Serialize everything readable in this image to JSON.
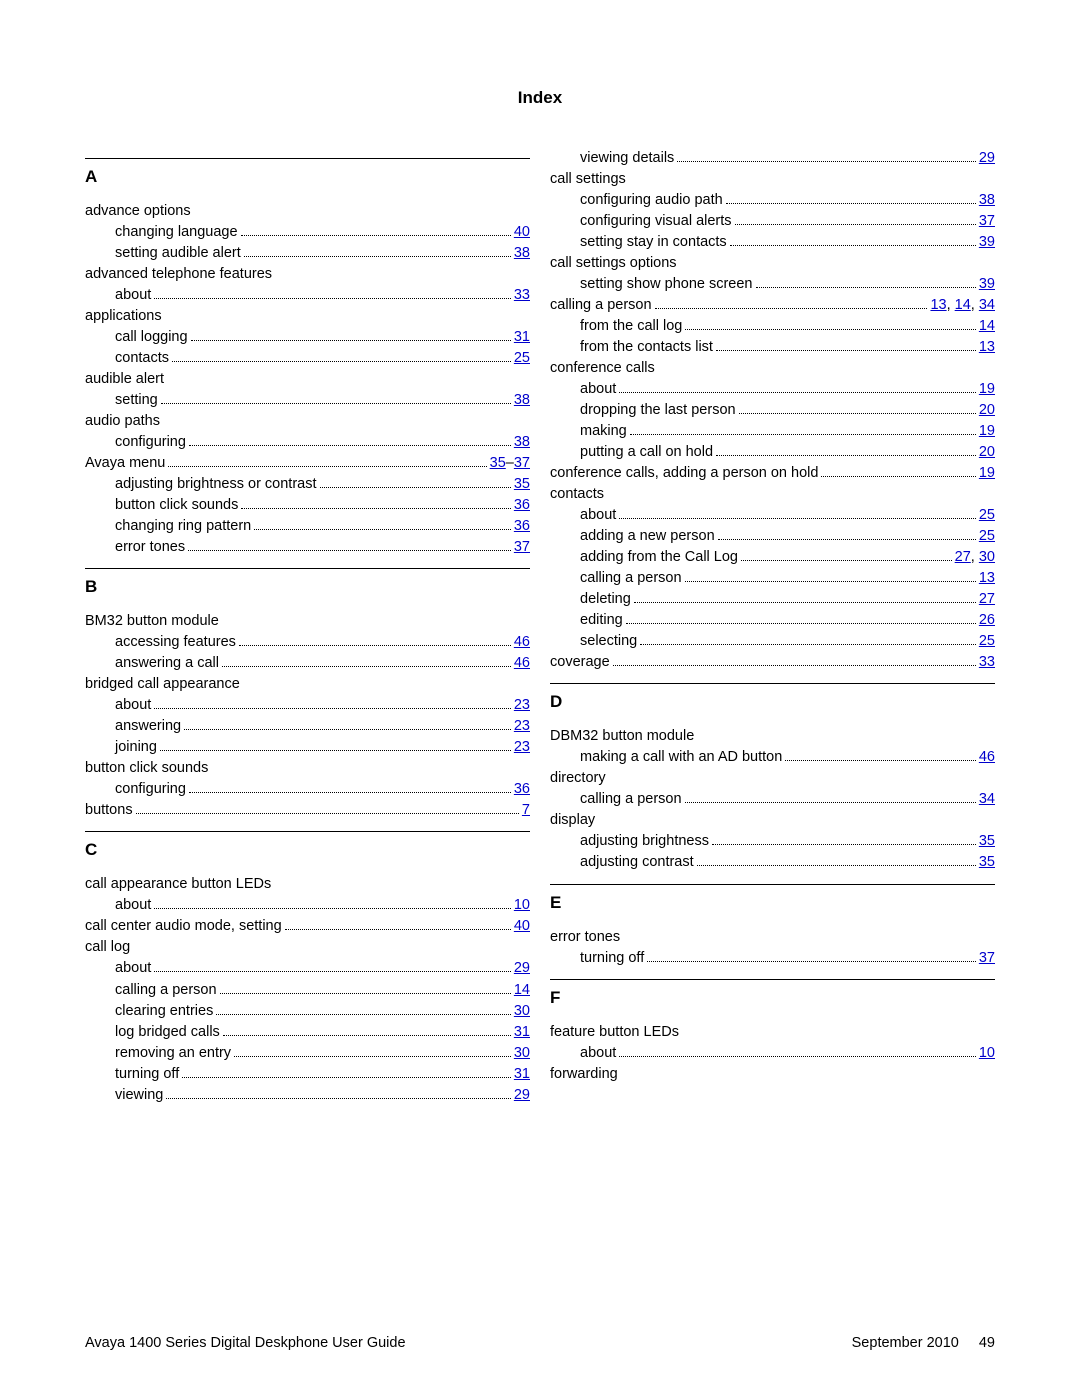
{
  "title": "Index",
  "footer": {
    "left": "Avaya 1400 Series Digital Deskphone User Guide",
    "date": "September 2010",
    "page": "49"
  },
  "link_color": "#0000cc",
  "text_color": "#000000",
  "font_size_body": 14.5,
  "font_size_title": 17,
  "left_column": [
    {
      "type": "rule"
    },
    {
      "type": "letter",
      "text": "A"
    },
    {
      "type": "entry",
      "indent": 0,
      "label": "advance options",
      "pages": []
    },
    {
      "type": "entry",
      "indent": 1,
      "label": "changing language",
      "pages": [
        "40"
      ]
    },
    {
      "type": "entry",
      "indent": 1,
      "label": "setting audible alert",
      "pages": [
        "38"
      ]
    },
    {
      "type": "entry",
      "indent": 0,
      "label": "advanced telephone features",
      "pages": []
    },
    {
      "type": "entry",
      "indent": 1,
      "label": "about",
      "pages": [
        "33"
      ]
    },
    {
      "type": "entry",
      "indent": 0,
      "label": "applications",
      "pages": []
    },
    {
      "type": "entry",
      "indent": 1,
      "label": "call logging",
      "pages": [
        "31"
      ]
    },
    {
      "type": "entry",
      "indent": 1,
      "label": "contacts",
      "pages": [
        "25"
      ]
    },
    {
      "type": "entry",
      "indent": 0,
      "label": "audible alert",
      "pages": []
    },
    {
      "type": "entry",
      "indent": 1,
      "label": "setting",
      "pages": [
        "38"
      ]
    },
    {
      "type": "entry",
      "indent": 0,
      "label": "audio paths",
      "pages": []
    },
    {
      "type": "entry",
      "indent": 1,
      "label": "configuring",
      "pages": [
        "38"
      ]
    },
    {
      "type": "entry",
      "indent": 0,
      "label": "Avaya menu",
      "pages": [
        "35",
        "–",
        "37"
      ]
    },
    {
      "type": "entry",
      "indent": 1,
      "label": "adjusting brightness or contrast",
      "pages": [
        "35"
      ]
    },
    {
      "type": "entry",
      "indent": 1,
      "label": "button click sounds",
      "pages": [
        "36"
      ]
    },
    {
      "type": "entry",
      "indent": 1,
      "label": "changing ring pattern",
      "pages": [
        "36"
      ]
    },
    {
      "type": "entry",
      "indent": 1,
      "label": "error tones",
      "pages": [
        "37"
      ]
    },
    {
      "type": "rule"
    },
    {
      "type": "letter",
      "text": "B"
    },
    {
      "type": "entry",
      "indent": 0,
      "label": "BM32 button module",
      "pages": []
    },
    {
      "type": "entry",
      "indent": 1,
      "label": "accessing features",
      "pages": [
        "46"
      ]
    },
    {
      "type": "entry",
      "indent": 1,
      "label": "answering a call",
      "pages": [
        "46"
      ]
    },
    {
      "type": "entry",
      "indent": 0,
      "label": "bridged call appearance",
      "pages": []
    },
    {
      "type": "entry",
      "indent": 1,
      "label": "about",
      "pages": [
        "23"
      ]
    },
    {
      "type": "entry",
      "indent": 1,
      "label": "answering",
      "pages": [
        "23"
      ]
    },
    {
      "type": "entry",
      "indent": 1,
      "label": "joining",
      "pages": [
        "23"
      ]
    },
    {
      "type": "entry",
      "indent": 0,
      "label": "button click sounds",
      "pages": []
    },
    {
      "type": "entry",
      "indent": 1,
      "label": "configuring",
      "pages": [
        "36"
      ]
    },
    {
      "type": "entry",
      "indent": 0,
      "label": "buttons",
      "pages": [
        "7"
      ]
    },
    {
      "type": "rule"
    },
    {
      "type": "letter",
      "text": "C"
    },
    {
      "type": "entry",
      "indent": 0,
      "label": "call appearance button LEDs",
      "pages": []
    },
    {
      "type": "entry",
      "indent": 1,
      "label": "about",
      "pages": [
        "10"
      ]
    },
    {
      "type": "entry",
      "indent": 0,
      "label": "call center audio mode, setting",
      "pages": [
        "40"
      ]
    },
    {
      "type": "entry",
      "indent": 0,
      "label": "call log",
      "pages": []
    },
    {
      "type": "entry",
      "indent": 1,
      "label": "about",
      "pages": [
        "29"
      ]
    },
    {
      "type": "entry",
      "indent": 1,
      "label": "calling a person",
      "pages": [
        "14"
      ]
    },
    {
      "type": "entry",
      "indent": 1,
      "label": "clearing entries",
      "pages": [
        "30"
      ]
    },
    {
      "type": "entry",
      "indent": 1,
      "label": "log bridged calls",
      "pages": [
        "31"
      ]
    },
    {
      "type": "entry",
      "indent": 1,
      "label": "removing an entry",
      "pages": [
        "30"
      ]
    },
    {
      "type": "entry",
      "indent": 1,
      "label": "turning off",
      "pages": [
        "31"
      ]
    },
    {
      "type": "entry",
      "indent": 1,
      "label": "viewing",
      "pages": [
        "29"
      ]
    }
  ],
  "right_column": [
    {
      "type": "entry",
      "indent": 1,
      "label": "viewing details",
      "pages": [
        "29"
      ]
    },
    {
      "type": "entry",
      "indent": 0,
      "label": "call settings",
      "pages": []
    },
    {
      "type": "entry",
      "indent": 1,
      "label": "configuring audio path",
      "pages": [
        "38"
      ]
    },
    {
      "type": "entry",
      "indent": 1,
      "label": "configuring visual alerts",
      "pages": [
        "37"
      ]
    },
    {
      "type": "entry",
      "indent": 1,
      "label": "setting stay in contacts",
      "pages": [
        "39"
      ]
    },
    {
      "type": "entry",
      "indent": 0,
      "label": "call settings options",
      "pages": []
    },
    {
      "type": "entry",
      "indent": 1,
      "label": "setting show phone screen",
      "pages": [
        "39"
      ]
    },
    {
      "type": "entry",
      "indent": 0,
      "label": "calling a person",
      "pages": [
        "13",
        ", ",
        "14",
        ", ",
        "34"
      ]
    },
    {
      "type": "entry",
      "indent": 1,
      "label": "from the call log",
      "pages": [
        "14"
      ]
    },
    {
      "type": "entry",
      "indent": 1,
      "label": "from the contacts list",
      "pages": [
        "13"
      ]
    },
    {
      "type": "entry",
      "indent": 0,
      "label": "conference calls",
      "pages": []
    },
    {
      "type": "entry",
      "indent": 1,
      "label": "about",
      "pages": [
        "19"
      ]
    },
    {
      "type": "entry",
      "indent": 1,
      "label": "dropping the last person",
      "pages": [
        "20"
      ]
    },
    {
      "type": "entry",
      "indent": 1,
      "label": "making",
      "pages": [
        "19"
      ]
    },
    {
      "type": "entry",
      "indent": 1,
      "label": "putting a call on hold",
      "pages": [
        "20"
      ]
    },
    {
      "type": "entry",
      "indent": 0,
      "label": "conference calls, adding a person on hold",
      "pages": [
        "19"
      ]
    },
    {
      "type": "entry",
      "indent": 0,
      "label": "contacts",
      "pages": []
    },
    {
      "type": "entry",
      "indent": 1,
      "label": "about",
      "pages": [
        "25"
      ]
    },
    {
      "type": "entry",
      "indent": 1,
      "label": "adding a new person",
      "pages": [
        "25"
      ]
    },
    {
      "type": "entry",
      "indent": 1,
      "label": "adding from the Call Log",
      "pages": [
        "27",
        ", ",
        "30"
      ]
    },
    {
      "type": "entry",
      "indent": 1,
      "label": "calling a person",
      "pages": [
        "13"
      ]
    },
    {
      "type": "entry",
      "indent": 1,
      "label": "deleting",
      "pages": [
        "27"
      ]
    },
    {
      "type": "entry",
      "indent": 1,
      "label": "editing",
      "pages": [
        "26"
      ]
    },
    {
      "type": "entry",
      "indent": 1,
      "label": "selecting",
      "pages": [
        "25"
      ]
    },
    {
      "type": "entry",
      "indent": 0,
      "label": "coverage",
      "pages": [
        "33"
      ]
    },
    {
      "type": "rule"
    },
    {
      "type": "letter",
      "text": "D"
    },
    {
      "type": "entry",
      "indent": 0,
      "label": "DBM32 button module",
      "pages": []
    },
    {
      "type": "entry",
      "indent": 1,
      "label": "making a call with an AD button",
      "pages": [
        "46"
      ]
    },
    {
      "type": "entry",
      "indent": 0,
      "label": "directory",
      "pages": []
    },
    {
      "type": "entry",
      "indent": 1,
      "label": "calling a person",
      "pages": [
        "34"
      ]
    },
    {
      "type": "entry",
      "indent": 0,
      "label": "display",
      "pages": []
    },
    {
      "type": "entry",
      "indent": 1,
      "label": "adjusting brightness",
      "pages": [
        "35"
      ]
    },
    {
      "type": "entry",
      "indent": 1,
      "label": "adjusting contrast",
      "pages": [
        "35"
      ]
    },
    {
      "type": "rule"
    },
    {
      "type": "letter",
      "text": "E"
    },
    {
      "type": "entry",
      "indent": 0,
      "label": "error tones",
      "pages": []
    },
    {
      "type": "entry",
      "indent": 1,
      "label": "turning off",
      "pages": [
        "37"
      ]
    },
    {
      "type": "rule"
    },
    {
      "type": "letter",
      "text": "F"
    },
    {
      "type": "entry",
      "indent": 0,
      "label": "feature button LEDs",
      "pages": []
    },
    {
      "type": "entry",
      "indent": 1,
      "label": "about",
      "pages": [
        "10"
      ]
    },
    {
      "type": "entry",
      "indent": 0,
      "label": "forwarding",
      "pages": []
    }
  ]
}
